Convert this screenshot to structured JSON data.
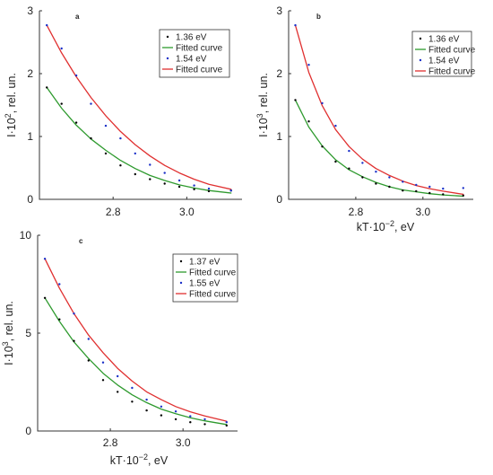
{
  "chart_data": [
    {
      "panel": "a",
      "type": "scatter",
      "title": "",
      "xlabel": "",
      "ylabel": "I·10², rel. un.",
      "ylabel_parts": {
        "base": "I·10",
        "exp": "2",
        "rest": ", rel. un."
      },
      "xlim": [
        2.6,
        3.15
      ],
      "ylim": [
        0,
        3
      ],
      "xticks": [
        2.8,
        3.0
      ],
      "xtick_labels": [
        "2.8",
        "3.0"
      ],
      "yticks": [
        0,
        1,
        2,
        3
      ],
      "ytick_labels": [
        "0",
        "1",
        "2",
        "3"
      ],
      "grid": false,
      "legend_position": "top-right",
      "legend_entries": [
        "1.36 eV",
        "Fitted curve",
        "1.54 eV",
        "Fitted curve"
      ],
      "series": [
        {
          "name": "1.36 eV",
          "kind": "points",
          "color": "#000000",
          "x": [
            2.62,
            2.66,
            2.7,
            2.74,
            2.78,
            2.82,
            2.86,
            2.9,
            2.94,
            2.98,
            3.02,
            3.06,
            3.12
          ],
          "y": [
            1.78,
            1.52,
            1.22,
            0.97,
            0.73,
            0.54,
            0.4,
            0.32,
            0.25,
            0.2,
            0.16,
            0.13,
            0.14
          ]
        },
        {
          "name": "Fitted curve",
          "kind": "line",
          "color": "#2e9a2e",
          "x": [
            2.62,
            2.66,
            2.7,
            2.74,
            2.78,
            2.82,
            2.86,
            2.9,
            2.94,
            2.98,
            3.02,
            3.06,
            3.12
          ],
          "y": [
            1.78,
            1.45,
            1.18,
            0.96,
            0.78,
            0.62,
            0.49,
            0.38,
            0.3,
            0.23,
            0.18,
            0.14,
            0.1
          ]
        },
        {
          "name": "1.54 eV",
          "kind": "points",
          "color": "#1a2fc8",
          "x": [
            2.62,
            2.66,
            2.7,
            2.74,
            2.78,
            2.82,
            2.86,
            2.9,
            2.94,
            2.98,
            3.02,
            3.06,
            3.12
          ],
          "y": [
            2.77,
            2.4,
            1.97,
            1.52,
            1.17,
            0.97,
            0.73,
            0.55,
            0.42,
            0.3,
            0.22,
            0.17,
            0.14
          ]
        },
        {
          "name": "Fitted curve",
          "kind": "line",
          "color": "#e03030",
          "x": [
            2.62,
            2.66,
            2.7,
            2.74,
            2.78,
            2.82,
            2.86,
            2.9,
            2.94,
            2.98,
            3.02,
            3.06,
            3.12
          ],
          "y": [
            2.77,
            2.33,
            1.95,
            1.62,
            1.33,
            1.08,
            0.87,
            0.69,
            0.54,
            0.42,
            0.32,
            0.24,
            0.16
          ]
        }
      ]
    },
    {
      "panel": "b",
      "type": "scatter",
      "title": "",
      "xlabel": "kT·10⁻², eV",
      "xlabel_parts": {
        "base": "kT·10",
        "exp": "−2",
        "rest": ", eV"
      },
      "ylabel": "I·10³, rel. un.",
      "ylabel_parts": {
        "base": "I·10",
        "exp": "3",
        "rest": ", rel. un."
      },
      "xlim": [
        2.6,
        3.15
      ],
      "ylim": [
        0,
        3
      ],
      "xticks": [
        2.8,
        3.0
      ],
      "xtick_labels": [
        "2.8",
        "3.0"
      ],
      "yticks": [
        0,
        1,
        2,
        3
      ],
      "ytick_labels": [
        "0",
        "1",
        "2",
        "3"
      ],
      "grid": false,
      "legend_position": "top-right",
      "legend_entries": [
        "1.36 eV",
        "Fitted curve",
        "1.54 eV",
        "Fitted curve"
      ],
      "series": [
        {
          "name": "1.36 eV",
          "kind": "points",
          "color": "#000000",
          "x": [
            2.62,
            2.66,
            2.7,
            2.74,
            2.78,
            2.82,
            2.86,
            2.9,
            2.94,
            2.98,
            3.02,
            3.06,
            3.12
          ],
          "y": [
            1.58,
            1.24,
            0.84,
            0.6,
            0.49,
            0.35,
            0.25,
            0.2,
            0.14,
            0.13,
            0.1,
            0.08,
            0.06
          ]
        },
        {
          "name": "Fitted curve",
          "kind": "line",
          "color": "#2e9a2e",
          "x": [
            2.62,
            2.66,
            2.7,
            2.74,
            2.78,
            2.82,
            2.86,
            2.9,
            2.94,
            2.98,
            3.02,
            3.06,
            3.12
          ],
          "y": [
            1.58,
            1.15,
            0.85,
            0.63,
            0.47,
            0.36,
            0.27,
            0.2,
            0.15,
            0.12,
            0.09,
            0.07,
            0.05
          ]
        },
        {
          "name": "1.54 eV",
          "kind": "points",
          "color": "#1a2fc8",
          "x": [
            2.62,
            2.66,
            2.7,
            2.74,
            2.78,
            2.82,
            2.86,
            2.9,
            2.94,
            2.98,
            3.02,
            3.06,
            3.12
          ],
          "y": [
            2.77,
            2.14,
            1.53,
            1.17,
            0.77,
            0.58,
            0.44,
            0.35,
            0.28,
            0.23,
            0.2,
            0.17,
            0.18
          ]
        },
        {
          "name": "Fitted curve",
          "kind": "line",
          "color": "#e03030",
          "x": [
            2.62,
            2.66,
            2.7,
            2.74,
            2.78,
            2.82,
            2.86,
            2.9,
            2.94,
            2.98,
            3.02,
            3.06,
            3.12
          ],
          "y": [
            2.77,
            2.02,
            1.49,
            1.11,
            0.84,
            0.64,
            0.49,
            0.38,
            0.29,
            0.22,
            0.17,
            0.13,
            0.08
          ]
        }
      ]
    },
    {
      "panel": "c",
      "type": "scatter",
      "title": "",
      "xlabel": "kT·10⁻², eV",
      "xlabel_parts": {
        "base": "kT·10",
        "exp": "−2",
        "rest": ", eV"
      },
      "ylabel": "I·10³, rel. un.",
      "ylabel_parts": {
        "base": "I·10",
        "exp": "3",
        "rest": ", rel. un."
      },
      "xlim": [
        2.6,
        3.15
      ],
      "ylim": [
        0,
        10
      ],
      "xticks": [
        2.8,
        3.0
      ],
      "xtick_labels": [
        "2.8",
        "3.0"
      ],
      "yticks": [
        0,
        5,
        10
      ],
      "ytick_labels": [
        "0",
        "5",
        "10"
      ],
      "grid": false,
      "legend_position": "top-right",
      "legend_entries": [
        "1.37 eV",
        "Fitted curve",
        "1.55 eV",
        "Fitted curve"
      ],
      "series": [
        {
          "name": "1.37 eV",
          "kind": "points",
          "color": "#000000",
          "x": [
            2.62,
            2.66,
            2.7,
            2.74,
            2.78,
            2.82,
            2.86,
            2.9,
            2.94,
            2.98,
            3.02,
            3.06,
            3.12
          ],
          "y": [
            6.8,
            5.7,
            4.6,
            3.6,
            2.6,
            2.0,
            1.5,
            1.05,
            0.8,
            0.6,
            0.45,
            0.35,
            0.28
          ]
        },
        {
          "name": "Fitted curve",
          "kind": "line",
          "color": "#2e9a2e",
          "x": [
            2.62,
            2.66,
            2.7,
            2.74,
            2.78,
            2.82,
            2.86,
            2.9,
            2.94,
            2.98,
            3.02,
            3.06,
            3.12
          ],
          "y": [
            6.8,
            5.6,
            4.55,
            3.7,
            2.95,
            2.35,
            1.85,
            1.45,
            1.12,
            0.88,
            0.68,
            0.52,
            0.33
          ]
        },
        {
          "name": "1.55 eV",
          "kind": "points",
          "color": "#1a2fc8",
          "x": [
            2.62,
            2.66,
            2.7,
            2.74,
            2.78,
            2.82,
            2.86,
            2.9,
            2.94,
            2.98,
            3.02,
            3.06,
            3.12
          ],
          "y": [
            8.8,
            7.5,
            6.0,
            4.7,
            3.5,
            2.8,
            2.2,
            1.6,
            1.25,
            1.0,
            0.75,
            0.6,
            0.45
          ]
        },
        {
          "name": "Fitted curve",
          "kind": "line",
          "color": "#e03030",
          "x": [
            2.62,
            2.66,
            2.7,
            2.74,
            2.78,
            2.82,
            2.86,
            2.9,
            2.94,
            2.98,
            3.02,
            3.06,
            3.12
          ],
          "y": [
            8.8,
            7.3,
            6.0,
            4.9,
            4.0,
            3.2,
            2.55,
            2.0,
            1.6,
            1.25,
            0.98,
            0.77,
            0.5
          ]
        }
      ]
    }
  ]
}
